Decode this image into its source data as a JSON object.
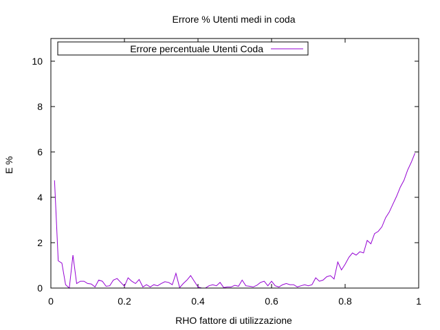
{
  "chart_data": {
    "type": "line",
    "title": "Errore % Utenti medi in coda",
    "xlabel": "RHO fattore di utilizzazione",
    "ylabel": "E %",
    "xlim": [
      0,
      1
    ],
    "ylim": [
      0,
      11
    ],
    "xticks": [
      0,
      0.2,
      0.4,
      0.6,
      0.8,
      1
    ],
    "xtick_labels": [
      "0",
      "0.2",
      "0.4",
      "0.6",
      "0.8",
      "1"
    ],
    "yticks": [
      0,
      2,
      4,
      6,
      8,
      10
    ],
    "ytick_labels": [
      "0",
      "2",
      "4",
      "6",
      "8",
      "10"
    ],
    "grid": false,
    "legend_position": "top-left",
    "series": [
      {
        "name": "Errore percentuale Utenti Coda",
        "color": "#9400d3",
        "x": [
          0.01,
          0.02,
          0.03,
          0.04,
          0.05,
          0.06,
          0.07,
          0.08,
          0.09,
          0.1,
          0.11,
          0.12,
          0.13,
          0.14,
          0.15,
          0.16,
          0.17,
          0.18,
          0.19,
          0.2,
          0.21,
          0.22,
          0.23,
          0.24,
          0.25,
          0.26,
          0.27,
          0.28,
          0.29,
          0.3,
          0.31,
          0.32,
          0.33,
          0.34,
          0.35,
          0.36,
          0.37,
          0.38,
          0.39,
          0.4,
          0.41,
          0.42,
          0.43,
          0.44,
          0.45,
          0.46,
          0.47,
          0.48,
          0.49,
          0.5,
          0.51,
          0.52,
          0.53,
          0.54,
          0.55,
          0.56,
          0.57,
          0.58,
          0.59,
          0.6,
          0.61,
          0.62,
          0.63,
          0.64,
          0.65,
          0.66,
          0.67,
          0.68,
          0.69,
          0.7,
          0.71,
          0.72,
          0.73,
          0.74,
          0.75,
          0.76,
          0.77,
          0.78,
          0.79,
          0.8,
          0.81,
          0.82,
          0.83,
          0.84,
          0.85,
          0.86,
          0.87,
          0.88,
          0.89,
          0.9,
          0.91,
          0.92,
          0.93,
          0.94,
          0.95,
          0.96,
          0.97,
          0.98,
          0.99
        ],
        "y": [
          4.75,
          1.2,
          1.1,
          0.15,
          0.0,
          1.45,
          0.2,
          0.3,
          0.3,
          0.2,
          0.18,
          0.05,
          0.35,
          0.3,
          0.08,
          0.1,
          0.35,
          0.42,
          0.25,
          0.08,
          0.45,
          0.3,
          0.2,
          0.38,
          0.05,
          0.15,
          0.05,
          0.15,
          0.1,
          0.2,
          0.28,
          0.25,
          0.15,
          0.65,
          0.02,
          0.2,
          0.35,
          0.55,
          0.3,
          0.05,
          0.0,
          0.0,
          0.1,
          0.15,
          0.1,
          0.25,
          0.02,
          0.05,
          0.05,
          0.12,
          0.08,
          0.35,
          0.1,
          0.08,
          0.05,
          0.12,
          0.25,
          0.3,
          0.1,
          0.3,
          0.1,
          0.05,
          0.15,
          0.2,
          0.15,
          0.15,
          0.05,
          0.1,
          0.15,
          0.1,
          0.15,
          0.45,
          0.3,
          0.35,
          0.5,
          0.55,
          0.4,
          1.15,
          0.8,
          1.05,
          1.35,
          1.55,
          1.45,
          1.6,
          1.55,
          2.1,
          1.95,
          2.4,
          2.5,
          2.7,
          3.1,
          3.35,
          3.7,
          4.05,
          4.45,
          4.75,
          5.2,
          5.55,
          5.95
        ]
      }
    ]
  }
}
